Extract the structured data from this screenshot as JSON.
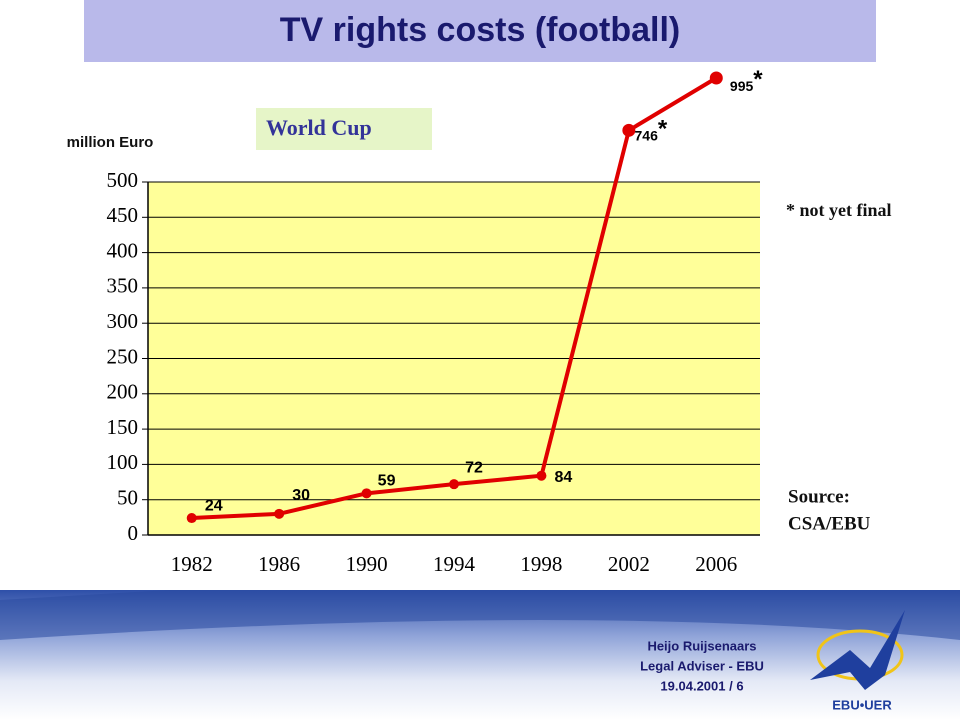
{
  "chart_data": {
    "type": "line",
    "title": "TV rights costs (football)",
    "y_axis_label": "million Euro",
    "annotation": "World Cup",
    "note": "* not yet final",
    "source": [
      "Source:",
      "CSA/EBU"
    ],
    "categories": [
      "1982",
      "1986",
      "1990",
      "1994",
      "1998",
      "2002",
      "2006"
    ],
    "series": [
      {
        "color": "#e00000",
        "values": [
          24,
          30,
          59,
          72,
          84,
          746,
          995
        ],
        "value_labels": [
          "24",
          "30",
          "59",
          "72",
          "84",
          "746*",
          "995*"
        ]
      }
    ],
    "ylim": [
      0,
      500
    ],
    "yticks": [
      0,
      50,
      100,
      150,
      200,
      250,
      300,
      350,
      400,
      450,
      500
    ],
    "grid": true,
    "plot_color": "#ffff99"
  },
  "footer": {
    "lines": [
      "Heijo Ruijsenaars",
      "Legal Adviser - EBU",
      "19.04.2001 / 6"
    ],
    "logo_text": "EBU•UER"
  }
}
